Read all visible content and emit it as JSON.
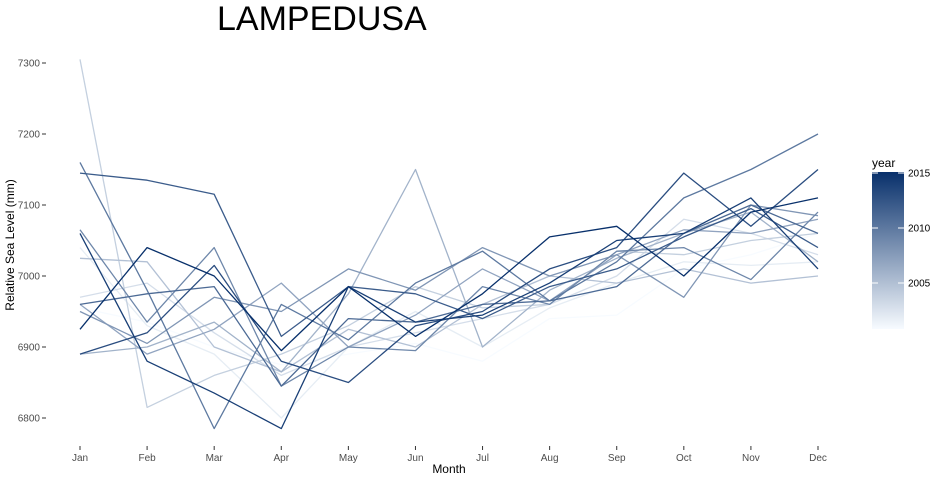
{
  "chart_data": {
    "type": "line",
    "title": "LAMPEDUSA",
    "xlabel": "Month",
    "ylabel": "Relative Sea Level (mm)",
    "categories": [
      "Jan",
      "Feb",
      "Mar",
      "Apr",
      "May",
      "Jun",
      "Jul",
      "Aug",
      "Sep",
      "Oct",
      "Nov",
      "Dec"
    ],
    "ylim": [
      6760,
      7310
    ],
    "yticks": [
      6800,
      6900,
      7000,
      7100,
      7200,
      7300
    ],
    "grid": false,
    "legend": {
      "title": "year",
      "position": "right",
      "type": "colorbar",
      "range": [
        2001,
        2015
      ],
      "ticks": [
        2005,
        2010,
        2015
      ],
      "color_low": "#f7fbff",
      "color_high": "#08306b"
    },
    "series": [
      {
        "year": 2001,
        "values": [
          6955,
          6935,
          6900,
          6875,
          6890,
          6905,
          6880,
          6940,
          6945,
          7010,
          7030,
          7060
        ]
      },
      {
        "year": 2002,
        "values": [
          7040,
          6930,
          6890,
          6800,
          6900,
          6950,
          6900,
          6955,
          6990,
          7020,
          7015,
          7020
        ]
      },
      {
        "year": 2003,
        "values": [
          6970,
          6990,
          6920,
          6860,
          6900,
          6920,
          6940,
          6960,
          7000,
          7080,
          7060,
          7030
        ]
      },
      {
        "year": 2004,
        "values": [
          7305,
          6815,
          6860,
          6890,
          6930,
          6985,
          6955,
          6960,
          7035,
          7030,
          7050,
          7060
        ]
      },
      {
        "year": 2005,
        "values": [
          7025,
          7020,
          6900,
          6865,
          6925,
          6900,
          6960,
          7000,
          6990,
          7010,
          6990,
          7000
        ]
      },
      {
        "year": 2006,
        "values": [
          6890,
          6900,
          6935,
          6865,
          6975,
          7150,
          6900,
          6980,
          7025,
          7060,
          7090,
          7020
        ]
      },
      {
        "year": 2007,
        "values": [
          6960,
          6890,
          6925,
          6990,
          6900,
          6945,
          7010,
          6965,
          7030,
          7065,
          7060,
          7080
        ]
      },
      {
        "year": 2008,
        "values": [
          6950,
          6905,
          6970,
          6950,
          7010,
          6980,
          7040,
          7000,
          7030,
          6970,
          7100,
          7085
        ]
      },
      {
        "year": 2009,
        "values": [
          7065,
          6935,
          7040,
          6845,
          6900,
          6895,
          6985,
          6960,
          7035,
          7040,
          6995,
          7090
        ]
      },
      {
        "year": 2010,
        "values": [
          7160,
          6980,
          6785,
          6960,
          6910,
          6990,
          7035,
          6965,
          7020,
          7110,
          7150,
          7200
        ]
      },
      {
        "year": 2011,
        "values": [
          6960,
          6975,
          6985,
          6845,
          6940,
          6935,
          6960,
          6965,
          6985,
          7060,
          7100,
          7060
        ]
      },
      {
        "year": 2012,
        "values": [
          7145,
          7135,
          7115,
          6915,
          6985,
          6975,
          6940,
          6985,
          7010,
          7055,
          7095,
          7040
        ]
      },
      {
        "year": 2013,
        "values": [
          6890,
          6920,
          7015,
          6880,
          6850,
          6930,
          6950,
          7010,
          7040,
          7145,
          7070,
          7150
        ]
      },
      {
        "year": 2014,
        "values": [
          7060,
          6880,
          6835,
          6785,
          6985,
          6935,
          6945,
          6990,
          7050,
          7060,
          7110,
          7010
        ]
      },
      {
        "year": 2015,
        "values": [
          6925,
          7040,
          7000,
          6895,
          6985,
          6915,
          6975,
          7055,
          7070,
          7000,
          7090,
          7110
        ]
      }
    ]
  }
}
